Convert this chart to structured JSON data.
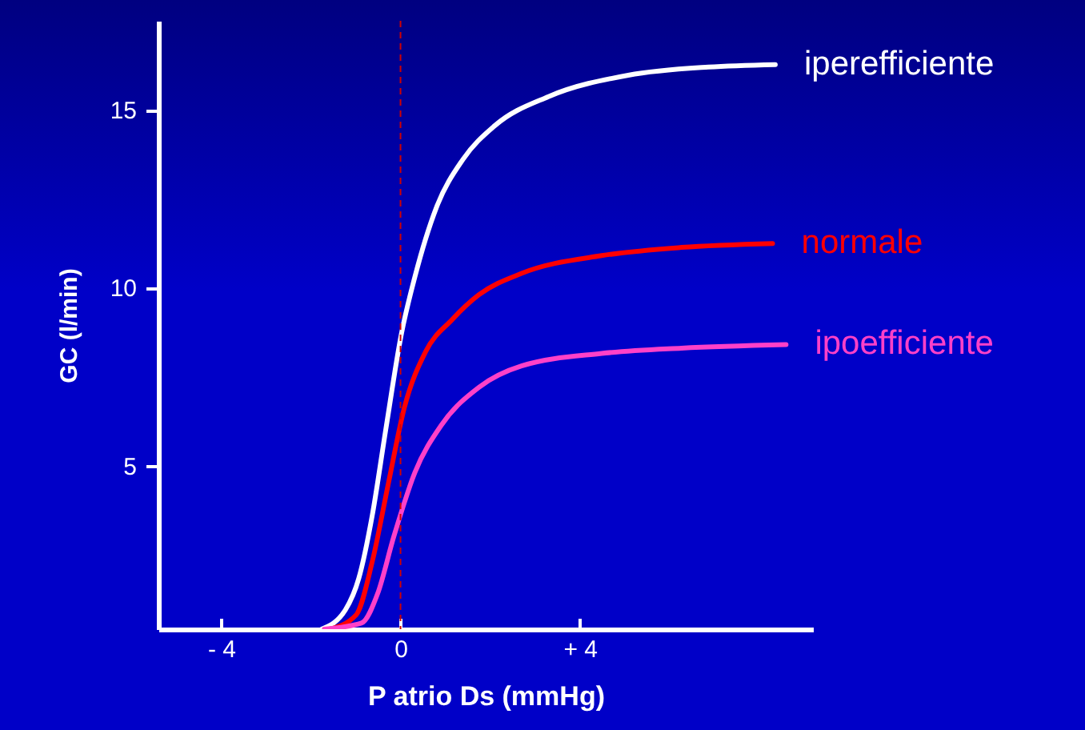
{
  "chart_data": {
    "type": "line",
    "xlabel": "P atrio Ds (mmHg)",
    "ylabel": "GC (l/min)",
    "xlim": [
      -5.4,
      9.2
    ],
    "ylim": [
      0.4,
      17.5
    ],
    "xticks": [
      {
        "value": -4,
        "label": "- 4"
      },
      0,
      {
        "value": 4,
        "label": "+ 4"
      }
    ],
    "yticks": [
      5,
      10,
      15
    ],
    "grid": false,
    "marker": "none",
    "line_style": "solid",
    "ref_lines": [
      {
        "axis": "x",
        "value": 0,
        "color": "#d00000",
        "line_style": "dashed"
      }
    ],
    "series": [
      {
        "name": "iperefficiente",
        "color": "#ffffff",
        "x": [
          -1.76,
          -1.23,
          -0.93,
          -0.63,
          -0.33,
          0.02,
          0.32,
          0.8,
          1.39,
          2.1,
          3.3,
          5.08,
          6.87,
          8.36
        ],
        "values": [
          0.4,
          0.94,
          1.83,
          3.6,
          6.0,
          8.7,
          10.3,
          12.25,
          13.6,
          14.55,
          15.37,
          15.97,
          16.2,
          16.27
        ]
      },
      {
        "name": "normale",
        "color": "#ff0000",
        "x": [
          -1.58,
          -0.99,
          -0.63,
          -0.27,
          0.08,
          0.56,
          1.15,
          1.75,
          2.7,
          4.49,
          6.27,
          8.3
        ],
        "values": [
          0.4,
          0.8,
          2.3,
          4.5,
          6.6,
          8.2,
          9.1,
          9.8,
          10.4,
          10.9,
          11.13,
          11.24
        ]
      },
      {
        "name": "ipoefficiente",
        "color": "#ff40c8",
        "x": [
          -1.7,
          -0.87,
          -0.51,
          -0.15,
          0.32,
          0.92,
          1.75,
          2.7,
          4.49,
          6.27,
          8.6
        ],
        "values": [
          0.4,
          0.57,
          1.4,
          3.0,
          4.8,
          6.15,
          7.2,
          7.8,
          8.15,
          8.3,
          8.4
        ]
      }
    ]
  }
}
